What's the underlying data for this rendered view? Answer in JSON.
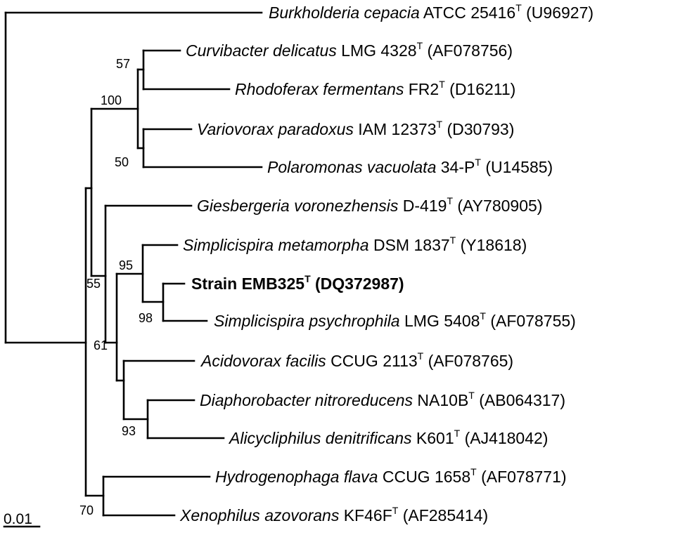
{
  "figure": {
    "scale_bar_label": "0.01",
    "taxa": [
      {
        "id": "burkholderia",
        "species": "Burkholderia cepacia",
        "strain": "ATCC 25416",
        "type_strain_mark": "T",
        "accession": "(U96927)",
        "highlighted": false
      },
      {
        "id": "curvibacter",
        "species": "Curvibacter delicatus",
        "strain": "LMG 4328",
        "type_strain_mark": "T",
        "accession": "(AF078756)",
        "highlighted": false
      },
      {
        "id": "rhodoferax",
        "species": "Rhodoferax fermentans",
        "strain": "FR2",
        "type_strain_mark": "T",
        "accession": "(D16211)",
        "highlighted": false
      },
      {
        "id": "variovorax",
        "species": "Variovorax paradoxus",
        "strain": "IAM 12373",
        "type_strain_mark": "T",
        "accession": "(D30793)",
        "highlighted": false
      },
      {
        "id": "polaromonas",
        "species": "Polaromonas vacuolata",
        "strain": "34-P",
        "type_strain_mark": "T",
        "accession": "(U14585)",
        "highlighted": false
      },
      {
        "id": "giesbergeria",
        "species": "Giesbergeria voronezhensis",
        "strain": "D-419",
        "type_strain_mark": "T",
        "accession": "(AY780905)",
        "highlighted": false
      },
      {
        "id": "simplicispira-metamorpha",
        "species": "Simplicispira metamorpha",
        "strain": "DSM 1837",
        "type_strain_mark": "T",
        "accession": "(Y18618)",
        "highlighted": false
      },
      {
        "id": "emb325",
        "species": "",
        "strain": "Strain EMB325",
        "type_strain_mark": "T",
        "accession": "(DQ372987)",
        "highlighted": true
      },
      {
        "id": "simplicispira-psychrophila",
        "species": "Simplicispira psychrophila",
        "strain": "LMG 5408",
        "type_strain_mark": "T",
        "accession": "(AF078755)",
        "highlighted": false
      },
      {
        "id": "acidovorax",
        "species": "Acidovorax facilis",
        "strain": "CCUG 2113",
        "type_strain_mark": "T",
        "accession": "(AF078765)",
        "highlighted": false
      },
      {
        "id": "diaphorobacter",
        "species": "Diaphorobacter nitroreducens",
        "strain": "NA10B",
        "type_strain_mark": "T",
        "accession": "(AB064317)",
        "highlighted": false
      },
      {
        "id": "alicycliphilus",
        "species": "Alicycliphilus denitrificans",
        "strain": "K601",
        "type_strain_mark": "T",
        "accession": "(AJ418042)",
        "highlighted": false
      },
      {
        "id": "hydrogenophaga",
        "species": "Hydrogenophaga flava",
        "strain": "CCUG 1658",
        "type_strain_mark": "T",
        "accession": "(AF078771)",
        "highlighted": false
      },
      {
        "id": "xenophilus",
        "species": "Xenophilus azovorans",
        "strain": "KF46F",
        "type_strain_mark": "T",
        "accession": "(AF285414)",
        "highlighted": false
      }
    ],
    "bootstrap_values": [
      {
        "id": "curvibacter-rhodoferax",
        "value": "57"
      },
      {
        "id": "core-clade",
        "value": "100"
      },
      {
        "id": "variovorax-polaromonas",
        "value": "50"
      },
      {
        "id": "simplicispira-clade",
        "value": "95"
      },
      {
        "id": "giesbergeria-clade",
        "value": "55"
      },
      {
        "id": "emb325-psychrophila",
        "value": "98"
      },
      {
        "id": "acidovorax-clade",
        "value": "61"
      },
      {
        "id": "diaphorobacter-alicycliphilus",
        "value": "93"
      },
      {
        "id": "hydrogenophaga-xenophilus",
        "value": "70"
      }
    ]
  }
}
